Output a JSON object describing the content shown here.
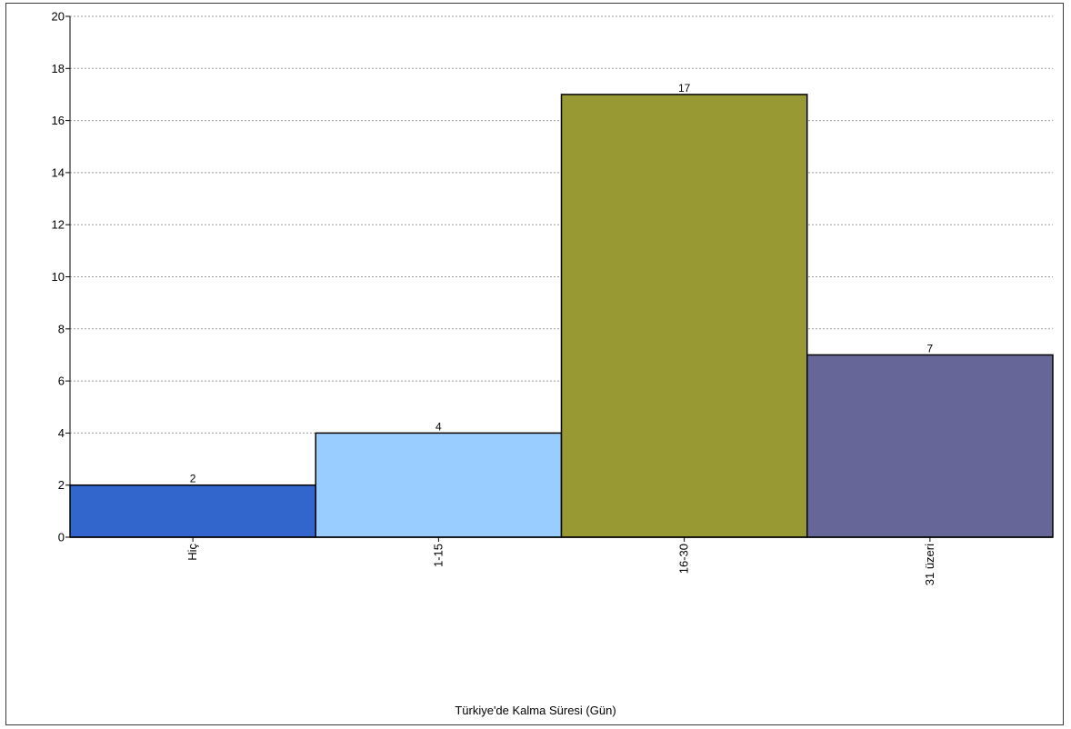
{
  "chart_data": {
    "type": "bar",
    "categories": [
      "Hiç",
      "1-15",
      "16-30",
      "31 üzeri"
    ],
    "values": [
      2,
      4,
      17,
      7
    ],
    "colors": [
      "#3366cc",
      "#99ccff",
      "#999933",
      "#666699"
    ],
    "title": "",
    "xlabel": "Türkiye'de Kalma Süresi (Gün)",
    "ylabel": "",
    "ylim": [
      0,
      20
    ],
    "yticks": [
      0,
      2,
      4,
      6,
      8,
      10,
      12,
      14,
      16,
      18,
      20
    ],
    "grid": true,
    "legend": "none"
  }
}
